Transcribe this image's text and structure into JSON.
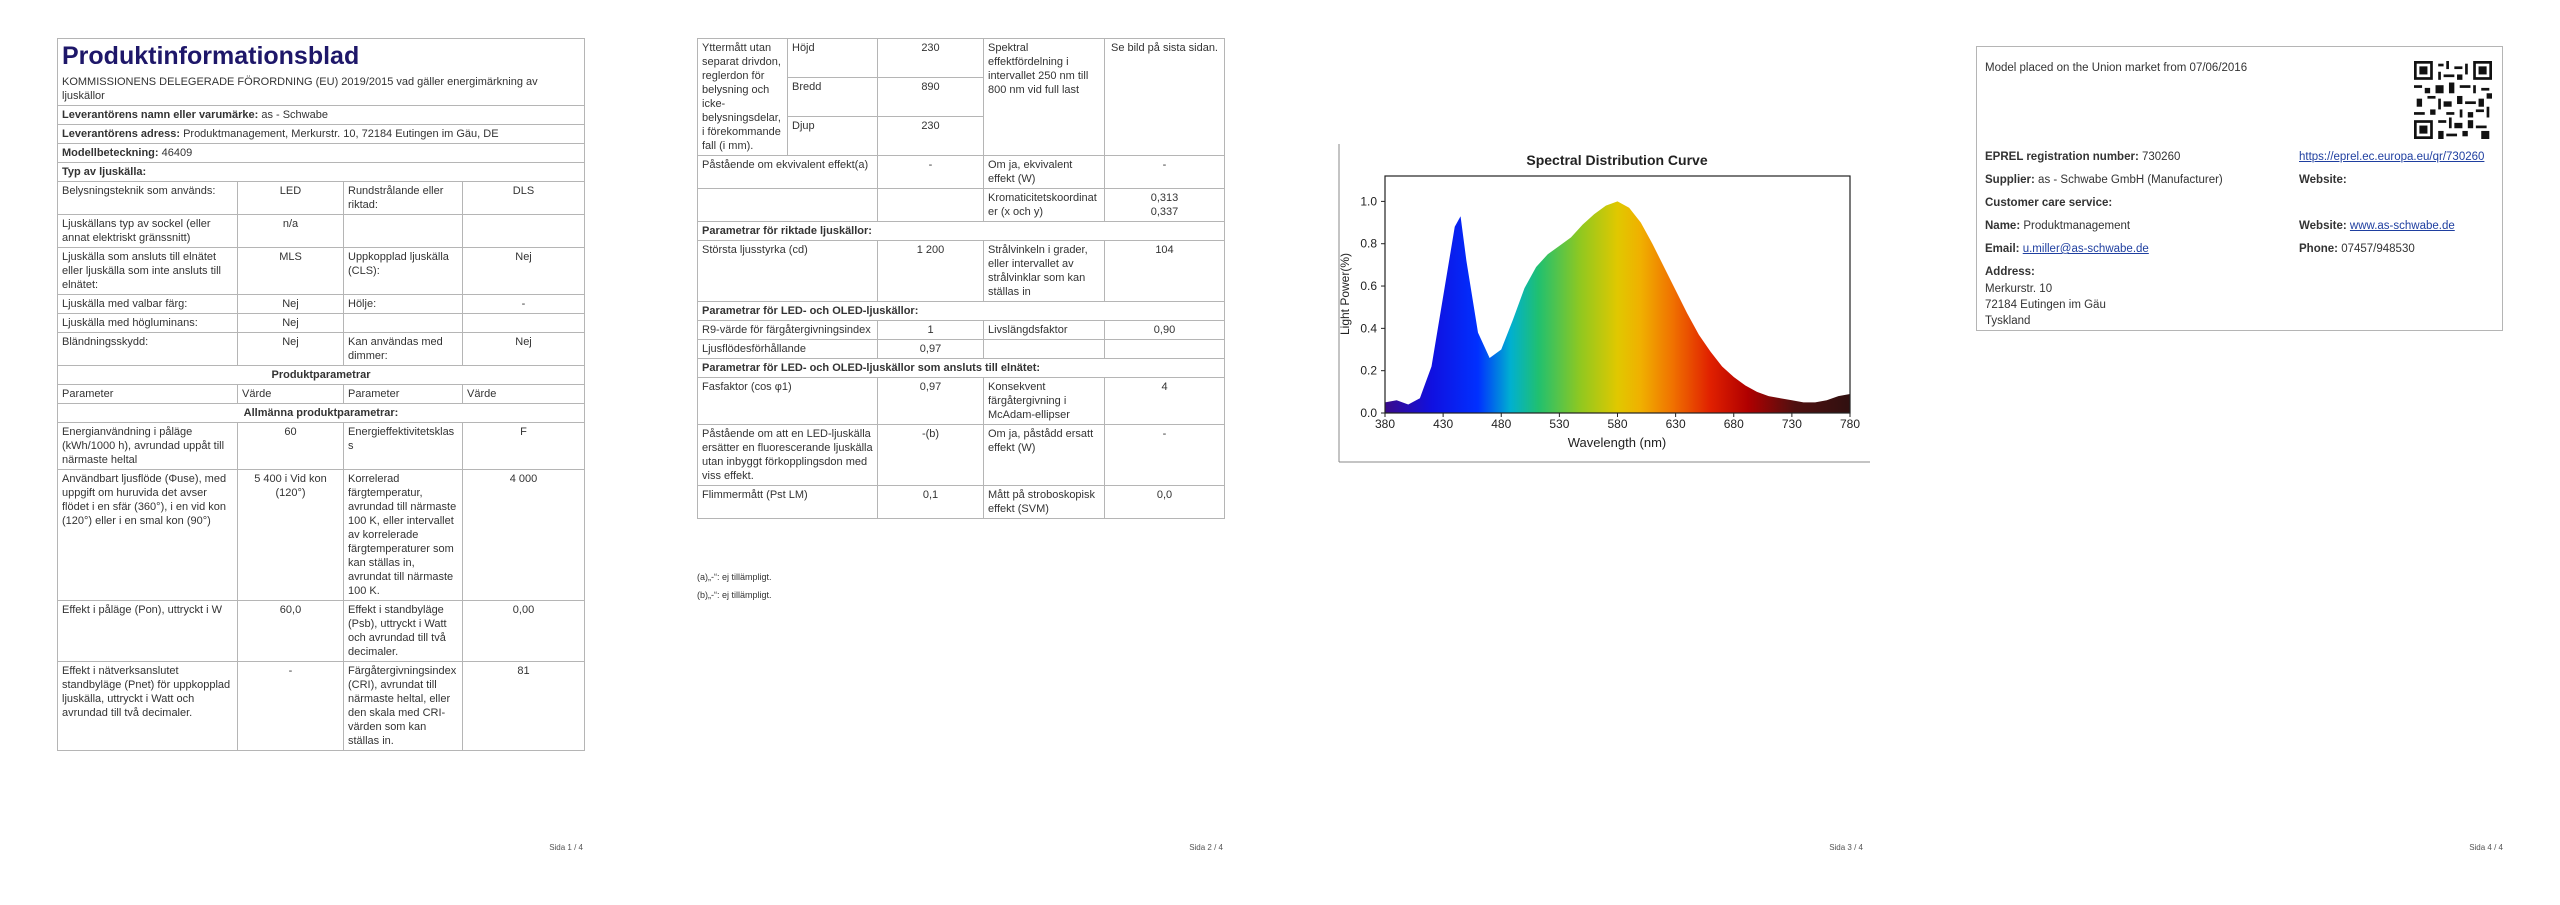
{
  "page1": {
    "title": "Produktinformationsblad",
    "regulation": "KOMMISSIONENS DELEGERADE FÖRORDNING (EU) 2019/2015 vad gäller energimärkning av ljuskällor",
    "info": [
      {
        "label": "Leverantörens namn eller varumärke:",
        "value": "as - Schwabe"
      },
      {
        "label": "Leverantörens adress:",
        "value": "Produktmanagement, Merkurstr. 10, 72184 Eutingen im Gäu, DE"
      },
      {
        "label": "Modellbeteckning:",
        "value": "46409"
      }
    ],
    "type_heading": "Typ av ljuskälla:",
    "type_rows": [
      [
        "Belysningsteknik som används:",
        "LED",
        "Rundstrålande eller riktad:",
        "DLS"
      ],
      [
        "Ljuskällans typ av sockel (eller annat elektriskt gränssnitt)",
        "n/a",
        null,
        null
      ],
      [
        "Ljuskälla som ansluts till elnätet eller ljuskälla som inte ansluts till elnätet:",
        "MLS",
        "Uppkopplad ljuskälla (CLS):",
        "Nej"
      ],
      [
        "Ljuskälla med valbar färg:",
        "Nej",
        "Hölje:",
        "-"
      ],
      [
        "Ljuskälla med högluminans:",
        "Nej",
        null,
        null
      ],
      [
        "Bländningsskydd:",
        "Nej",
        "Kan användas med dimmer:",
        "Nej"
      ]
    ],
    "params_heading": "Produktparametrar",
    "columns": [
      "Parameter",
      "Värde",
      "Parameter",
      "Värde"
    ],
    "general_heading": "Allmänna produktparametrar:",
    "param_rows": [
      [
        "Energianvändning i påläge (kWh/1000 h), avrundad uppåt till närmaste heltal",
        "60",
        "Energieffektivitetsklass",
        "F"
      ],
      [
        "Användbart ljusflöde (Φuse), med uppgift om huruvida det avser flödet i en sfär (360°), i en vid kon (120°) eller i en smal kon (90°)",
        "5 400 i Vid kon (120°)",
        "Korrelerad färgtemperatur, avrundad till närmaste 100 K, eller intervallet av korrelerade färgtemperaturer som kan ställas in, avrundat till närmaste 100 K.",
        "4 000"
      ],
      [
        "Effekt i påläge (Pon), uttryckt i W",
        "60,0",
        "Effekt i standbyläge (Psb), uttryckt i Watt och avrundad till två decimaler.",
        "0,00"
      ],
      [
        "Effekt i nätverksanslutet standbyläge (Pnet) för uppkopplad ljuskälla, uttryckt i Watt och avrundad till två decimaler.",
        "-",
        "Färgåtergivningsindex (CRI), avrundat till närmaste heltal, eller den skala med CRI-värden som kan ställas in.",
        "81"
      ]
    ],
    "page_number": "Sida 1 / 4"
  },
  "page2": {
    "dimensions": {
      "label": "Yttermått utan separat drivdon, reglerdon för belysning och icke-belysningsdelar, i förekommande fall (i mm).",
      "items": [
        {
          "name": "Höjd",
          "value": "230"
        },
        {
          "name": "Bredd",
          "value": "890"
        },
        {
          "name": "Djup",
          "value": "230"
        }
      ],
      "spectrum_label": "Spektral effektfördelning i intervallet 250 nm till 800 nm vid full last",
      "spectrum_value": "Se bild på sista sidan."
    },
    "rows": [
      {
        "cells": [
          "Påstående om ekvivalent effekt(a)",
          "-",
          "Om ja, ekvivalent effekt (W)",
          "-"
        ]
      },
      {
        "cells": [
          null,
          null,
          "Kromaticitetskoordinater (x och y)",
          [
            "0,313",
            "0,337"
          ]
        ]
      },
      {
        "heading": "Parametrar för riktade ljuskällor:"
      },
      {
        "cells": [
          "Största ljusstyrka (cd)",
          "1 200",
          "Strålvinkeln i grader, eller intervallet av strålvinklar som kan ställas in",
          "104"
        ]
      },
      {
        "heading": "Parametrar för LED- och OLED-ljuskällor:"
      },
      {
        "cells": [
          "R9-värde för färgåtergivningsindex",
          "1",
          "Livslängdsfaktor",
          "0,90"
        ]
      },
      {
        "cells": [
          "Ljusflödesförhållande",
          "0,97",
          null,
          null
        ]
      },
      {
        "heading": "Parametrar för LED- och OLED-ljuskällor som ansluts till elnätet:"
      },
      {
        "cells": [
          "Fasfaktor (cos φ1)",
          "0,97",
          "Konsekvent färgåtergivning i McAdam-ellipser",
          "4"
        ]
      },
      {
        "cells": [
          "Påstående om att en LED-ljuskälla ersätter en fluorescerande ljuskälla utan inbyggt förkopplingsdon med viss effekt.",
          "-(b)",
          "Om ja, påstådd ersatt effekt (W)",
          "-"
        ]
      },
      {
        "cells": [
          "Flimmermått (Pst LM)",
          "0,1",
          "Mått på stroboskopisk effekt (SVM)",
          "0,0"
        ]
      }
    ],
    "footnotes": [
      "(a)„-“: ej tillämpligt.",
      "(b)„-“: ej tillämpligt."
    ],
    "page_number": "Sida 2 / 4"
  },
  "page3": {
    "chart_data": {
      "type": "area",
      "title": "Spectral Distribution Curve",
      "x_label": "Wavelength (nm)",
      "y_label": "Light Power(%)",
      "x": [
        380,
        390,
        400,
        410,
        420,
        430,
        440,
        445,
        450,
        460,
        470,
        480,
        490,
        500,
        510,
        520,
        530,
        540,
        550,
        560,
        570,
        580,
        590,
        600,
        610,
        620,
        630,
        640,
        650,
        660,
        670,
        680,
        690,
        700,
        710,
        720,
        730,
        740,
        750,
        760,
        770,
        780
      ],
      "values": [
        0.05,
        0.06,
        0.04,
        0.07,
        0.22,
        0.55,
        0.88,
        0.93,
        0.72,
        0.38,
        0.26,
        0.3,
        0.44,
        0.59,
        0.69,
        0.75,
        0.79,
        0.83,
        0.89,
        0.94,
        0.98,
        1.0,
        0.97,
        0.9,
        0.8,
        0.69,
        0.58,
        0.47,
        0.37,
        0.29,
        0.22,
        0.17,
        0.13,
        0.1,
        0.08,
        0.07,
        0.06,
        0.05,
        0.05,
        0.06,
        0.08,
        0.09
      ],
      "xlim": [
        380,
        780
      ],
      "ylim": [
        0,
        1.12
      ],
      "xticks": [
        380,
        430,
        480,
        530,
        580,
        630,
        680,
        730,
        780
      ],
      "yticks": [
        {
          "value": 0,
          "label": "0.0"
        },
        0.2,
        0.4,
        0.6,
        0.8,
        {
          "value": 1,
          "label": "1.0"
        }
      ]
    },
    "page_number": "Sida 3 / 4"
  },
  "page4": {
    "market_date": "Model placed on the Union market from 07/06/2016",
    "eprel": {
      "label": "EPREL registration number:",
      "value": "730260",
      "link": "https://eprel.ec.europa.eu/qr/730260"
    },
    "supplier": {
      "label": "Supplier:",
      "value": "as - Schwabe GmbH (Manufacturer)"
    },
    "website": {
      "label": "Website:"
    },
    "customer_care": "Customer care service:",
    "name": {
      "label": "Name:",
      "value": "Produktmanagement"
    },
    "care_website": {
      "label": "Website:",
      "value": "www.as-schwabe.de"
    },
    "email": {
      "label": "Email:",
      "value": "u.miller@as-schwabe.de"
    },
    "phone": {
      "label": "Phone:",
      "value": "07457/948530"
    },
    "address": {
      "label": "Address:",
      "lines": [
        "Merkurstr. 10",
        "72184 Eutingen im Gäu",
        "Tyskland"
      ]
    },
    "page_number": "Sida 4 / 4"
  }
}
